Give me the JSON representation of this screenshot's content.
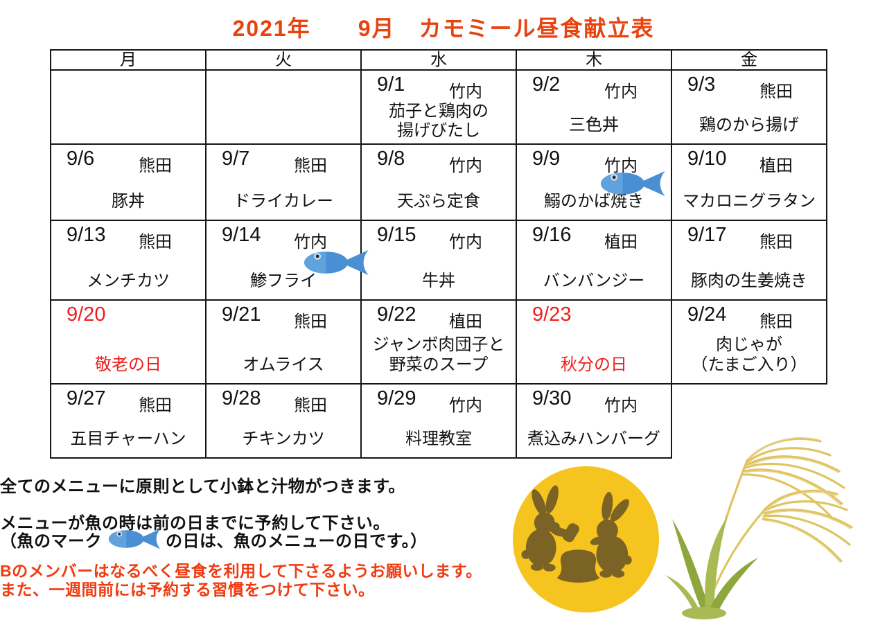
{
  "title": "2021年　　9月　カモミール昼食献立表",
  "calendar": {
    "day_headers": [
      "月",
      "火",
      "水",
      "木",
      "金"
    ],
    "weeks": [
      [
        {},
        {},
        {
          "date": "9/1",
          "cook": "竹内",
          "menu": [
            "茄子と鶏肉の",
            "揚げびたし"
          ]
        },
        {
          "date": "9/2",
          "cook": "竹内",
          "menu": [
            "三色丼"
          ]
        },
        {
          "date": "9/3",
          "cook": "熊田",
          "menu": [
            "鶏のから揚げ"
          ]
        }
      ],
      [
        {
          "date": "9/6",
          "cook": "熊田",
          "menu": [
            "豚丼"
          ]
        },
        {
          "date": "9/7",
          "cook": "熊田",
          "menu": [
            "ドライカレー"
          ]
        },
        {
          "date": "9/8",
          "cook": "竹内",
          "menu": [
            "天ぷら定食"
          ]
        },
        {
          "date": "9/9",
          "cook": "竹内",
          "menu": [
            "鰯のかば焼き"
          ],
          "fish": "right-inside"
        },
        {
          "date": "9/10",
          "cook": "植田",
          "menu": [
            "マカロニグラタン"
          ]
        }
      ],
      [
        {
          "date": "9/13",
          "cook": "熊田",
          "menu": [
            "メンチカツ"
          ]
        },
        {
          "date": "9/14",
          "cook": "竹内",
          "menu": [
            "鯵フライ"
          ],
          "fish": "overlap-right"
        },
        {
          "date": "9/15",
          "cook": "竹内",
          "menu": [
            "牛丼"
          ]
        },
        {
          "date": "9/16",
          "cook": "植田",
          "menu": [
            "バンバンジー"
          ]
        },
        {
          "date": "9/17",
          "cook": "熊田",
          "menu": [
            "豚肉の生姜焼き"
          ]
        }
      ],
      [
        {
          "date": "9/20",
          "red": true,
          "menu": [
            "敬老の日"
          ]
        },
        {
          "date": "9/21",
          "cook": "熊田",
          "menu": [
            "オムライス"
          ]
        },
        {
          "date": "9/22",
          "cook": "植田",
          "menu": [
            "ジャンボ肉団子と",
            "野菜のスープ"
          ]
        },
        {
          "date": "9/23",
          "red": true,
          "menu": [
            "秋分の日"
          ]
        },
        {
          "date": "9/24",
          "cook": "熊田",
          "menu": [
            "肉じゃが",
            "（たまご入り）"
          ]
        }
      ],
      [
        {
          "date": "9/27",
          "cook": "熊田",
          "menu": [
            "五目チャーハン"
          ]
        },
        {
          "date": "9/28",
          "cook": "熊田",
          "menu": [
            "チキンカツ"
          ]
        },
        {
          "date": "9/29",
          "cook": "竹内",
          "menu": [
            "料理教室"
          ]
        },
        {
          "date": "9/30",
          "cook": "竹内",
          "menu": [
            "煮込みハンバーグ"
          ]
        },
        {
          "missing": true
        }
      ]
    ]
  },
  "notes": {
    "line1": "全てのメニューに原則として小鉢と汁物がつきます。",
    "line2": "メニューが魚の時は前の日までに予約して下さい。",
    "line3_before_fish": "（魚のマーク",
    "line3_after_fish": "の日は、魚のメニューの日です。）",
    "red_line1": "Bのメンバーはなるべく昼食を利用して下さるようお願いします。",
    "red_line2": "また、一週間前には予約する習慣をつけて下さい。"
  },
  "icons": {
    "fish": "fish-icon",
    "moon": "moon-rabbits-illustration",
    "grass": "susuki-grass-illustration"
  },
  "colors": {
    "title_red": "#e8420f",
    "holiday_red": "#ee1d1d",
    "note_red": "#f13a10",
    "fish_blue": "#4a8fd4",
    "fish_blue_light": "#5fa2de",
    "moon_yellow": "#f6c41f",
    "rabbit_brown": "#7a6324",
    "grass_tan": "#dfc462",
    "grass_tan_light": "#e9d489",
    "grass_green_dark": "#8fa63c",
    "grass_green_light": "#a9ba54",
    "border_black": "#161616",
    "text_black": "#111111"
  }
}
